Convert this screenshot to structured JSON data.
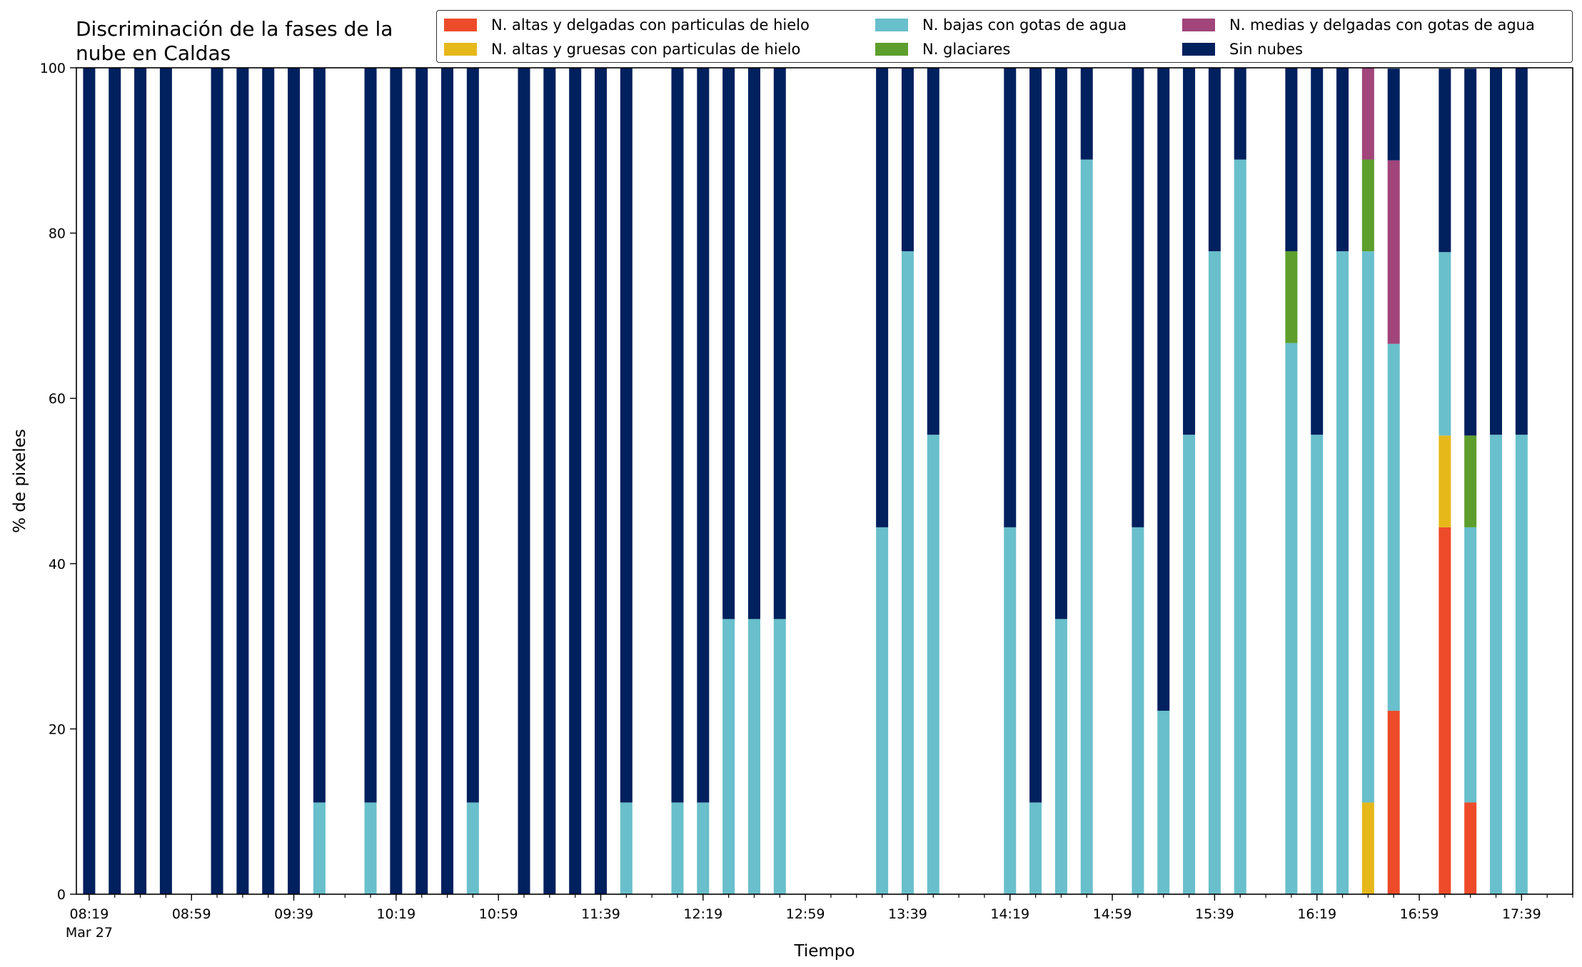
{
  "title": "Discriminación de la fases de la nube en Caldas",
  "title_lines": [
    "Discriminación de la fases de la",
    "nube en Caldas"
  ],
  "colors": {
    "altas_delgadas": "#EE4B2B",
    "altas_gruesas": "#E6B81A",
    "bajas": "#69BFCB",
    "glaciares": "#5D9E2C",
    "medias": "#A1457A",
    "sin_nubes": "#00205E"
  },
  "legend": [
    {
      "key": "altas_delgadas",
      "label": "N. altas y delgadas con particulas de hielo"
    },
    {
      "key": "altas_gruesas",
      "label": "N. altas y gruesas con particulas de hielo"
    },
    {
      "key": "bajas",
      "label": "N. bajas con gotas de agua"
    },
    {
      "key": "glaciares",
      "label": "N. glaciares"
    },
    {
      "key": "medias",
      "label": "N. medias y delgadas con gotas de agua"
    },
    {
      "key": "sin_nubes",
      "label": "Sin nubes"
    }
  ],
  "chart_data": {
    "type": "bar",
    "stacked": true,
    "title": "Discriminación de la fases de la nube en Caldas",
    "xlabel": "Tiempo",
    "ylabel": "% de pixeles",
    "ylim": [
      0,
      100
    ],
    "yticks": [
      0,
      20,
      40,
      60,
      80,
      100
    ],
    "x_range": [
      "08:14",
      "17:59"
    ],
    "x_tick_labels": [
      "08:19",
      "08:59",
      "09:39",
      "10:19",
      "10:59",
      "11:39",
      "12:19",
      "12:59",
      "13:39",
      "14:19",
      "14:59",
      "15:39",
      "16:19",
      "16:59",
      "17:39"
    ],
    "x_date_label": "Mar 27",
    "minor_tick_interval_minutes": 10,
    "legend_position": "top-right",
    "grid": false,
    "series_order": [
      "altas_delgadas",
      "altas_gruesas",
      "bajas",
      "glaciares",
      "medias",
      "sin_nubes"
    ],
    "bars": [
      {
        "time": "08:19",
        "altas_delgadas": 0,
        "altas_gruesas": 0,
        "bajas": 0,
        "glaciares": 0,
        "medias": 0,
        "sin_nubes": 100
      },
      {
        "time": "08:29",
        "altas_delgadas": 0,
        "altas_gruesas": 0,
        "bajas": 0,
        "glaciares": 0,
        "medias": 0,
        "sin_nubes": 100
      },
      {
        "time": "08:39",
        "altas_delgadas": 0,
        "altas_gruesas": 0,
        "bajas": 0,
        "glaciares": 0,
        "medias": 0,
        "sin_nubes": 100
      },
      {
        "time": "08:49",
        "altas_delgadas": 0,
        "altas_gruesas": 0,
        "bajas": 0,
        "glaciares": 0,
        "medias": 0,
        "sin_nubes": 100
      },
      {
        "time": "09:09",
        "altas_delgadas": 0,
        "altas_gruesas": 0,
        "bajas": 0,
        "glaciares": 0,
        "medias": 0,
        "sin_nubes": 100
      },
      {
        "time": "09:19",
        "altas_delgadas": 0,
        "altas_gruesas": 0,
        "bajas": 0,
        "glaciares": 0,
        "medias": 0,
        "sin_nubes": 100
      },
      {
        "time": "09:29",
        "altas_delgadas": 0,
        "altas_gruesas": 0,
        "bajas": 0,
        "glaciares": 0,
        "medias": 0,
        "sin_nubes": 100
      },
      {
        "time": "09:39",
        "altas_delgadas": 0,
        "altas_gruesas": 0,
        "bajas": 0,
        "glaciares": 0,
        "medias": 0,
        "sin_nubes": 100
      },
      {
        "time": "09:49",
        "altas_delgadas": 0,
        "altas_gruesas": 0,
        "bajas": 11.1,
        "glaciares": 0,
        "medias": 0,
        "sin_nubes": 88.9
      },
      {
        "time": "10:09",
        "altas_delgadas": 0,
        "altas_gruesas": 0,
        "bajas": 11.1,
        "glaciares": 0,
        "medias": 0,
        "sin_nubes": 88.9
      },
      {
        "time": "10:19",
        "altas_delgadas": 0,
        "altas_gruesas": 0,
        "bajas": 0,
        "glaciares": 0,
        "medias": 0,
        "sin_nubes": 100
      },
      {
        "time": "10:29",
        "altas_delgadas": 0,
        "altas_gruesas": 0,
        "bajas": 0,
        "glaciares": 0,
        "medias": 0,
        "sin_nubes": 100
      },
      {
        "time": "10:39",
        "altas_delgadas": 0,
        "altas_gruesas": 0,
        "bajas": 0,
        "glaciares": 0,
        "medias": 0,
        "sin_nubes": 100
      },
      {
        "time": "10:49",
        "altas_delgadas": 0,
        "altas_gruesas": 0,
        "bajas": 11.1,
        "glaciares": 0,
        "medias": 0,
        "sin_nubes": 88.9
      },
      {
        "time": "11:09",
        "altas_delgadas": 0,
        "altas_gruesas": 0,
        "bajas": 0,
        "glaciares": 0,
        "medias": 0,
        "sin_nubes": 100
      },
      {
        "time": "11:19",
        "altas_delgadas": 0,
        "altas_gruesas": 0,
        "bajas": 0,
        "glaciares": 0,
        "medias": 0,
        "sin_nubes": 100
      },
      {
        "time": "11:29",
        "altas_delgadas": 0,
        "altas_gruesas": 0,
        "bajas": 0,
        "glaciares": 0,
        "medias": 0,
        "sin_nubes": 100
      },
      {
        "time": "11:39",
        "altas_delgadas": 0,
        "altas_gruesas": 0,
        "bajas": 0,
        "glaciares": 0,
        "medias": 0,
        "sin_nubes": 100
      },
      {
        "time": "11:49",
        "altas_delgadas": 0,
        "altas_gruesas": 0,
        "bajas": 11.1,
        "glaciares": 0,
        "medias": 0,
        "sin_nubes": 88.9
      },
      {
        "time": "12:09",
        "altas_delgadas": 0,
        "altas_gruesas": 0,
        "bajas": 11.1,
        "glaciares": 0,
        "medias": 0,
        "sin_nubes": 88.9
      },
      {
        "time": "12:19",
        "altas_delgadas": 0,
        "altas_gruesas": 0,
        "bajas": 11.1,
        "glaciares": 0,
        "medias": 0,
        "sin_nubes": 88.9
      },
      {
        "time": "12:29",
        "altas_delgadas": 0,
        "altas_gruesas": 0,
        "bajas": 33.3,
        "glaciares": 0,
        "medias": 0,
        "sin_nubes": 66.7
      },
      {
        "time": "12:39",
        "altas_delgadas": 0,
        "altas_gruesas": 0,
        "bajas": 33.3,
        "glaciares": 0,
        "medias": 0,
        "sin_nubes": 66.7
      },
      {
        "time": "12:49",
        "altas_delgadas": 0,
        "altas_gruesas": 0,
        "bajas": 33.3,
        "glaciares": 0,
        "medias": 0,
        "sin_nubes": 66.7
      },
      {
        "time": "13:29",
        "altas_delgadas": 0,
        "altas_gruesas": 0,
        "bajas": 44.4,
        "glaciares": 0,
        "medias": 0,
        "sin_nubes": 55.6
      },
      {
        "time": "13:39",
        "altas_delgadas": 0,
        "altas_gruesas": 0,
        "bajas": 77.8,
        "glaciares": 0,
        "medias": 0,
        "sin_nubes": 22.2
      },
      {
        "time": "13:49",
        "altas_delgadas": 0,
        "altas_gruesas": 0,
        "bajas": 55.6,
        "glaciares": 0,
        "medias": 0,
        "sin_nubes": 44.4
      },
      {
        "time": "14:19",
        "altas_delgadas": 0,
        "altas_gruesas": 0,
        "bajas": 44.4,
        "glaciares": 0,
        "medias": 0,
        "sin_nubes": 55.6
      },
      {
        "time": "14:29",
        "altas_delgadas": 0,
        "altas_gruesas": 0,
        "bajas": 11.1,
        "glaciares": 0,
        "medias": 0,
        "sin_nubes": 88.9
      },
      {
        "time": "14:39",
        "altas_delgadas": 0,
        "altas_gruesas": 0,
        "bajas": 33.3,
        "glaciares": 0,
        "medias": 0,
        "sin_nubes": 66.7
      },
      {
        "time": "14:49",
        "altas_delgadas": 0,
        "altas_gruesas": 0,
        "bajas": 88.9,
        "glaciares": 0,
        "medias": 0,
        "sin_nubes": 11.1
      },
      {
        "time": "15:09",
        "altas_delgadas": 0,
        "altas_gruesas": 0,
        "bajas": 44.4,
        "glaciares": 0,
        "medias": 0,
        "sin_nubes": 55.6
      },
      {
        "time": "15:19",
        "altas_delgadas": 0,
        "altas_gruesas": 0,
        "bajas": 22.2,
        "glaciares": 0,
        "medias": 0,
        "sin_nubes": 77.8
      },
      {
        "time": "15:29",
        "altas_delgadas": 0,
        "altas_gruesas": 0,
        "bajas": 55.6,
        "glaciares": 0,
        "medias": 0,
        "sin_nubes": 44.4
      },
      {
        "time": "15:39",
        "altas_delgadas": 0,
        "altas_gruesas": 0,
        "bajas": 77.8,
        "glaciares": 0,
        "medias": 0,
        "sin_nubes": 22.2
      },
      {
        "time": "15:49",
        "altas_delgadas": 0,
        "altas_gruesas": 0,
        "bajas": 88.9,
        "glaciares": 0,
        "medias": 0,
        "sin_nubes": 11.1
      },
      {
        "time": "16:09",
        "altas_delgadas": 0,
        "altas_gruesas": 0,
        "bajas": 66.7,
        "glaciares": 11.1,
        "medias": 0,
        "sin_nubes": 22.2
      },
      {
        "time": "16:19",
        "altas_delgadas": 0,
        "altas_gruesas": 0,
        "bajas": 55.6,
        "glaciares": 0,
        "medias": 0,
        "sin_nubes": 44.4
      },
      {
        "time": "16:29",
        "altas_delgadas": 0,
        "altas_gruesas": 0,
        "bajas": 77.8,
        "glaciares": 0,
        "medias": 0,
        "sin_nubes": 22.2
      },
      {
        "time": "16:39",
        "altas_delgadas": 0,
        "altas_gruesas": 11.1,
        "bajas": 66.7,
        "glaciares": 11.1,
        "medias": 11.1,
        "sin_nubes": 0
      },
      {
        "time": "16:49",
        "altas_delgadas": 22.2,
        "altas_gruesas": 0,
        "bajas": 44.4,
        "glaciares": 0,
        "medias": 22.2,
        "sin_nubes": 11.1
      },
      {
        "time": "17:09",
        "altas_delgadas": 44.4,
        "altas_gruesas": 11.1,
        "bajas": 22.2,
        "glaciares": 0,
        "medias": 0,
        "sin_nubes": 22.2
      },
      {
        "time": "17:19",
        "altas_delgadas": 11.1,
        "altas_gruesas": 0,
        "bajas": 33.3,
        "glaciares": 11.1,
        "medias": 0,
        "sin_nubes": 44.4
      },
      {
        "time": "17:29",
        "altas_delgadas": 0,
        "altas_gruesas": 0,
        "bajas": 55.6,
        "glaciares": 0,
        "medias": 0,
        "sin_nubes": 44.4
      },
      {
        "time": "17:39",
        "altas_delgadas": 0,
        "altas_gruesas": 0,
        "bajas": 55.6,
        "glaciares": 0,
        "medias": 0,
        "sin_nubes": 44.4
      }
    ]
  }
}
